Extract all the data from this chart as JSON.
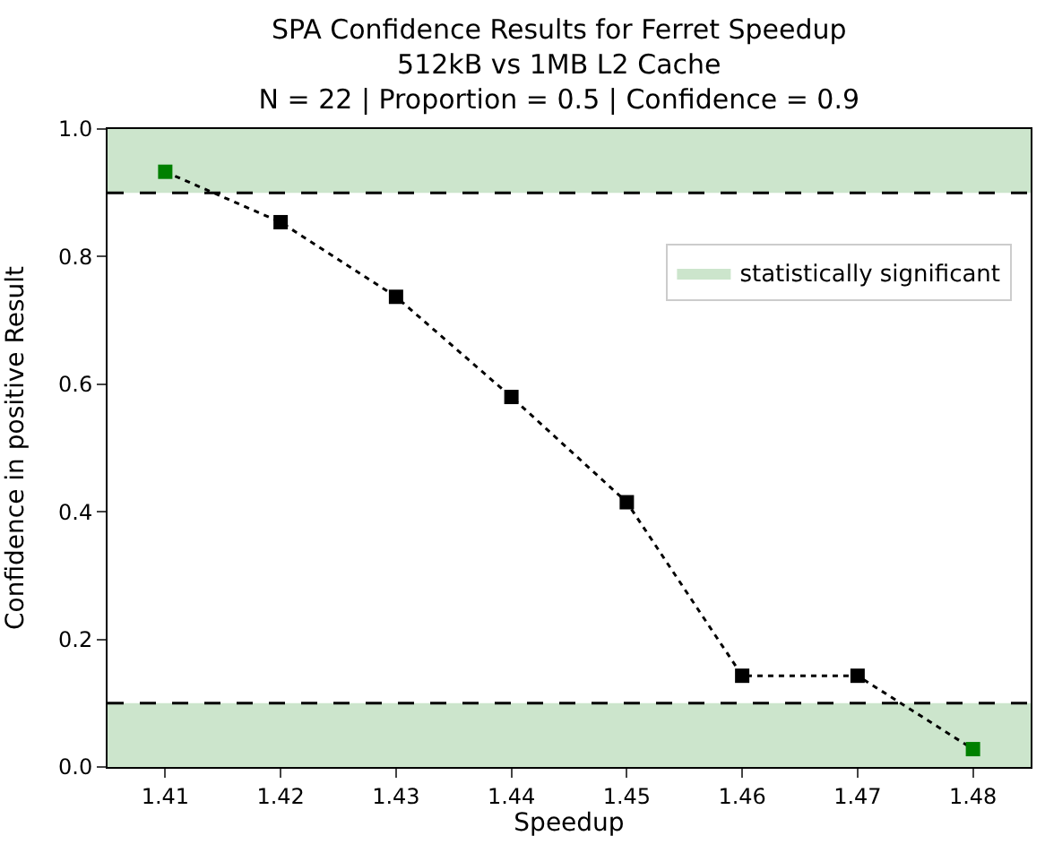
{
  "chart_data": {
    "type": "line",
    "title": "SPA Confidence Results for Ferret Speedup\n512kB vs 1MB L2 Cache\nN = 22 | Proportion = 0.5 | Confidence = 0.9",
    "xlabel": "Speedup",
    "ylabel": "Confidence in positive Result",
    "x": [
      1.41,
      1.42,
      1.43,
      1.44,
      1.45,
      1.46,
      1.47,
      1.48
    ],
    "series": [
      {
        "color": "#000000",
        "colors": [
          "#008000",
          "#000000",
          "#000000",
          "#000000",
          "#000000",
          "#000000",
          "#000000",
          "#008000"
        ],
        "values": [
          0.933,
          0.854,
          0.737,
          0.58,
          0.415,
          0.143,
          0.143,
          0.028
        ]
      }
    ],
    "xlim": [
      1.405,
      1.485
    ],
    "ylim": [
      0,
      1
    ],
    "xticks": [
      1.41,
      1.42,
      1.43,
      1.44,
      1.45,
      1.46,
      1.47,
      1.48
    ],
    "yticks": [
      {
        "value": 0,
        "label": "0.0"
      },
      0.2,
      0.4,
      0.6,
      0.8,
      {
        "value": 1,
        "label": "1.0"
      }
    ],
    "ref_lines": [
      {
        "axis": "y",
        "value": 0.9,
        "color": "#000000",
        "line_style": "dashed"
      },
      {
        "axis": "y",
        "value": 0.1,
        "color": "#000000",
        "line_style": "dashed"
      }
    ],
    "bands": [
      {
        "axis": "y",
        "from": 0.9,
        "to": 1,
        "label": "statistically significant",
        "color": "#cce5cc"
      },
      {
        "axis": "y",
        "from": 0,
        "to": 0.1,
        "color": "#cce5cc"
      }
    ],
    "marker": "square",
    "line_style": "dotted",
    "grid": false,
    "legend": "top right"
  }
}
